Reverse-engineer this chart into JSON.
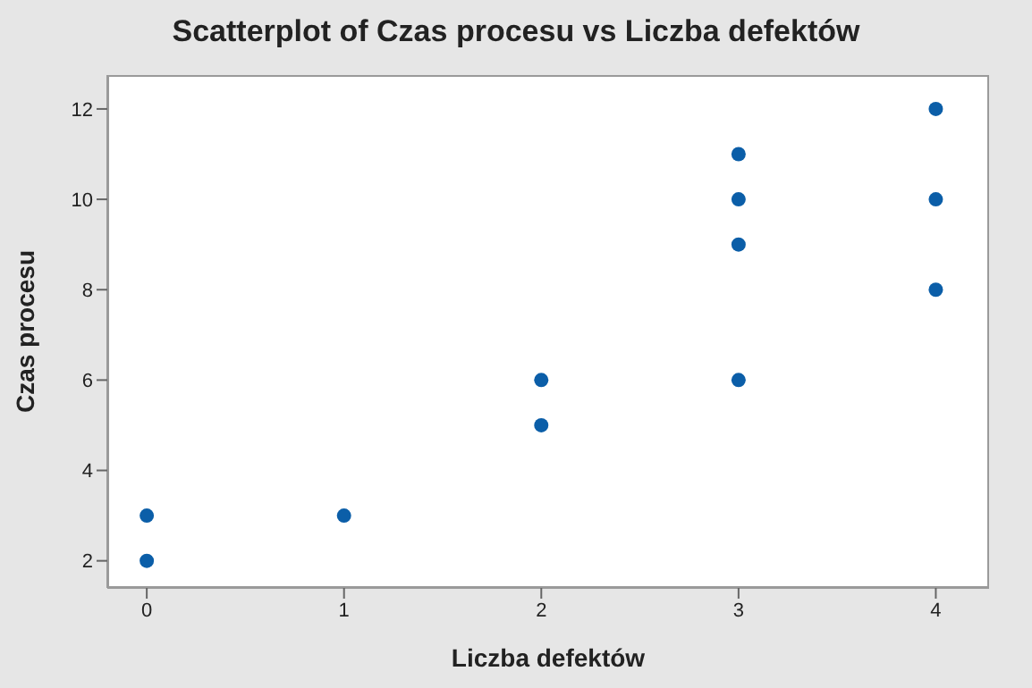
{
  "chart_data": {
    "type": "scatter",
    "title": "Scatterplot of Czas procesu vs Liczba defektów",
    "xlabel": "Liczba defektów",
    "ylabel": "Czas procesu",
    "x": [
      0,
      0,
      1,
      2,
      2,
      3,
      3,
      3,
      3,
      4,
      4,
      4
    ],
    "series": [
      {
        "color": "#0b5ea8",
        "values": [
          3,
          2,
          3,
          6,
          5,
          11,
          10,
          9,
          6,
          12,
          10,
          8
        ]
      }
    ],
    "xlim": [
      -0.2,
      4.27
    ],
    "xticks": [
      0,
      1,
      2,
      3,
      4
    ],
    "ylim": [
      1.4,
      12.75
    ],
    "yticks": [
      2,
      4,
      6,
      8,
      10,
      12
    ],
    "grid": false,
    "marker": "circle"
  }
}
